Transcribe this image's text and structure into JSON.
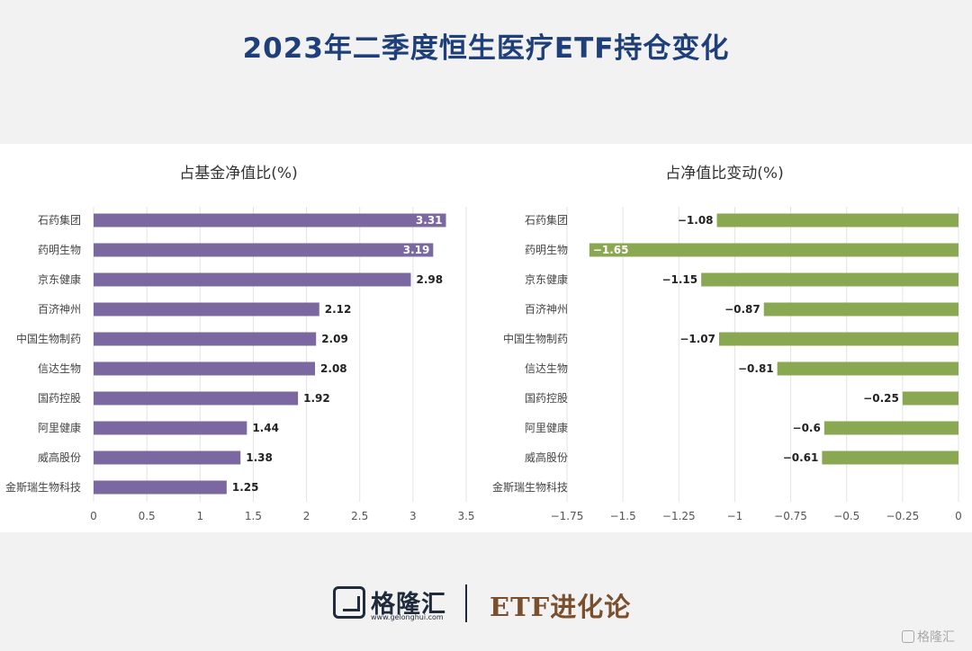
{
  "page_title": "2023年二季度恒生医疗ETF持仓变化",
  "chart_data": [
    {
      "type": "bar",
      "orientation": "horizontal",
      "title": "占基金净值比(%)",
      "categories": [
        "石药集团",
        "药明生物",
        "京东健康",
        "百济神州",
        "中国生物制药",
        "信达生物",
        "国药控股",
        "阿里健康",
        "威高股份",
        "金斯瑞生物科技"
      ],
      "values": [
        3.31,
        3.19,
        2.98,
        2.12,
        2.09,
        2.08,
        1.92,
        1.44,
        1.38,
        1.25
      ],
      "value_labels": [
        "3.31",
        "3.19",
        "2.98",
        "2.12",
        "2.09",
        "2.08",
        "1.92",
        "1.44",
        "1.38",
        "1.25"
      ],
      "xlim": [
        0,
        3.5
      ],
      "xticks": [
        0,
        0.5,
        1,
        1.5,
        2,
        2.5,
        3,
        3.5
      ],
      "xtick_labels": [
        "0",
        "0.5",
        "1",
        "1.5",
        "2",
        "2.5",
        "3",
        "3.5"
      ],
      "grid": true,
      "color": "#7b68a0"
    },
    {
      "type": "bar",
      "orientation": "horizontal",
      "title": "占净值比变动(%)",
      "categories": [
        "石药集团",
        "药明生物",
        "京东健康",
        "百济神州",
        "中国生物制药",
        "信达生物",
        "国药控股",
        "阿里健康",
        "威高股份",
        "金斯瑞生物科技"
      ],
      "values": [
        -1.08,
        -1.65,
        -1.15,
        -0.87,
        -1.07,
        -0.81,
        -0.25,
        -0.6,
        -0.61,
        null
      ],
      "value_labels": [
        "−1.08",
        "−1.65",
        "−1.15",
        "−0.87",
        "−1.07",
        "−0.81",
        "−0.25",
        "−0.6",
        "−0.61",
        ""
      ],
      "xlim": [
        -1.75,
        0
      ],
      "xticks": [
        -1.75,
        -1.5,
        -1.25,
        -1,
        -0.75,
        -0.5,
        -0.25,
        0
      ],
      "xtick_labels": [
        "−1.75",
        "−1.5",
        "−1.25",
        "−1",
        "−0.75",
        "−0.5",
        "−0.25",
        "0"
      ],
      "grid": true,
      "color": "#8aa752"
    }
  ],
  "footer": {
    "brand_name": "格隆汇",
    "brand_url": "www.gelonghui.com",
    "brand_logo_icon": "g-logo-icon",
    "column_name": "ETF进化论"
  },
  "watermark": {
    "icon": "g-logo-icon",
    "text": "格隆汇"
  }
}
